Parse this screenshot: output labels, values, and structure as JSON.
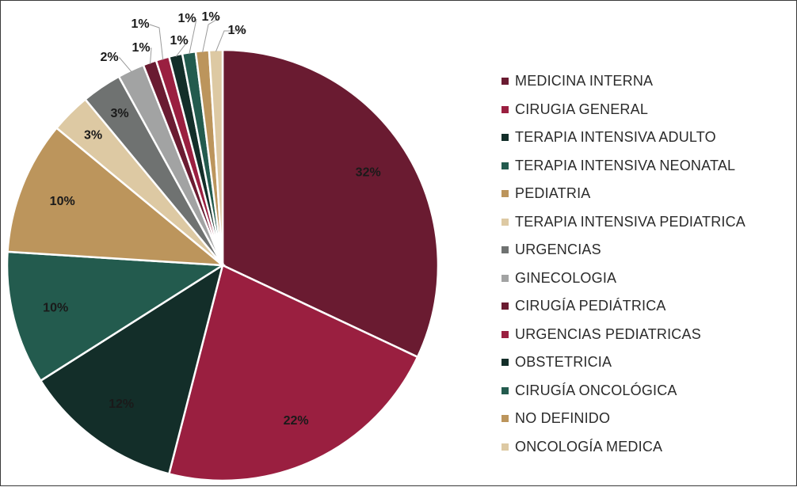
{
  "chart_data": {
    "type": "pie",
    "title": "",
    "legend_position": "right",
    "slices": [
      {
        "label": "MEDICINA INTERNA",
        "value": 32,
        "display": "32%",
        "color": "#6A1B31"
      },
      {
        "label": "CIRUGIA GENERAL",
        "value": 22,
        "display": "22%",
        "color": "#9A1F40"
      },
      {
        "label": "TERAPIA INTENSIVA ADULTO",
        "value": 12,
        "display": "12%",
        "color": "#132E29"
      },
      {
        "label": "TERAPIA INTENSIVA NEONATAL",
        "value": 10,
        "display": "10%",
        "color": "#235B4E"
      },
      {
        "label": "PEDIATRIA",
        "value": 10,
        "display": "10%",
        "color": "#BC955C"
      },
      {
        "label": "TERAPIA INTENSIVA PEDIATRICA",
        "value": 3,
        "display": "3%",
        "color": "#DDC9A3"
      },
      {
        "label": "URGENCIAS",
        "value": 3,
        "display": "3%",
        "color": "#6F7271"
      },
      {
        "label": "GINECOLOGIA",
        "value": 2,
        "display": "2%",
        "color": "#A2A3A3"
      },
      {
        "label": "CIRUGÍA PEDIÁTRICA",
        "value": 1,
        "display": "1%",
        "color": "#6A1B31"
      },
      {
        "label": "URGENCIAS PEDIATRICAS",
        "value": 1,
        "display": "1%",
        "color": "#9A1F40"
      },
      {
        "label": "OBSTETRICIA",
        "value": 1,
        "display": "1%",
        "color": "#132E29"
      },
      {
        "label": "CIRUGÍA ONCOLÓGICA",
        "value": 1,
        "display": "1%",
        "color": "#235B4E"
      },
      {
        "label": "NO DEFINIDO",
        "value": 1,
        "display": "1%",
        "color": "#BC955C"
      },
      {
        "label": "ONCOLOGÍA MEDICA",
        "value": 1,
        "display": "1%",
        "color": "#DDC9A3"
      }
    ]
  }
}
